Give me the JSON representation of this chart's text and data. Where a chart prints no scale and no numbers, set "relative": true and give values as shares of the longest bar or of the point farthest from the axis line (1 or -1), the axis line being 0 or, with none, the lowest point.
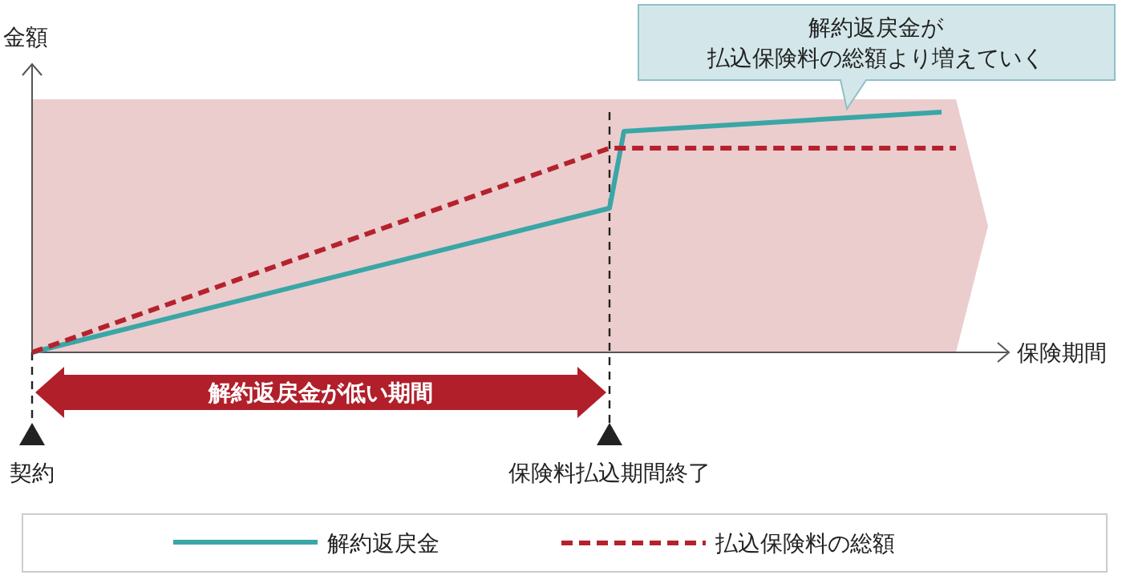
{
  "chart_data": {
    "type": "line",
    "relative": true,
    "ylabel": "金額",
    "xlabel": "保険期間",
    "grid": false,
    "marker": "none",
    "legend": "bottom",
    "categories": [
      "契約",
      null,
      null,
      null,
      null,
      null,
      null,
      null,
      null,
      null,
      null,
      null,
      null,
      null,
      null,
      null,
      null,
      null,
      null,
      null,
      null,
      null,
      null,
      null,
      null,
      null,
      null,
      null,
      null,
      null,
      null,
      null,
      null,
      null,
      null,
      null,
      null,
      null,
      null,
      null,
      "保険料払込期間終了",
      null,
      null,
      null,
      null,
      null,
      null,
      null,
      null,
      null,
      null,
      null,
      null,
      null,
      null,
      null,
      null,
      null,
      null,
      null,
      null,
      null,
      null,
      null,
      null
    ],
    "series": [
      {
        "name": "解約返戻金",
        "color": "#3aa6a6",
        "line_style": "solid",
        "values": [
          0,
          null,
          null,
          null,
          null,
          null,
          null,
          null,
          null,
          null,
          null,
          null,
          null,
          null,
          null,
          null,
          null,
          null,
          null,
          null,
          null,
          null,
          null,
          null,
          null,
          null,
          null,
          null,
          null,
          null,
          null,
          null,
          null,
          null,
          null,
          null,
          null,
          null,
          null,
          null,
          0.6,
          0.92,
          null,
          null,
          null,
          null,
          null,
          null,
          null,
          null,
          null,
          null,
          null,
          null,
          null,
          null,
          null,
          null,
          null,
          null,
          null,
          null,
          null,
          1,
          null
        ]
      },
      {
        "name": "払込保険料の総額",
        "color": "#b5222d",
        "line_style": "dashed",
        "values": [
          0,
          null,
          null,
          null,
          null,
          null,
          null,
          null,
          null,
          null,
          null,
          null,
          null,
          null,
          null,
          null,
          null,
          null,
          null,
          null,
          null,
          null,
          null,
          null,
          null,
          null,
          null,
          null,
          null,
          null,
          null,
          null,
          null,
          null,
          null,
          null,
          null,
          null,
          null,
          null,
          0.85,
          null,
          null,
          null,
          null,
          null,
          null,
          null,
          null,
          null,
          null,
          null,
          null,
          null,
          null,
          null,
          null,
          null,
          null,
          null,
          null,
          null,
          null,
          null,
          0.85
        ]
      }
    ],
    "annotations": [
      "解約返戻金が低い期間",
      "解約返戻金が",
      "払込保険料の総額より増えていく"
    ]
  }
}
